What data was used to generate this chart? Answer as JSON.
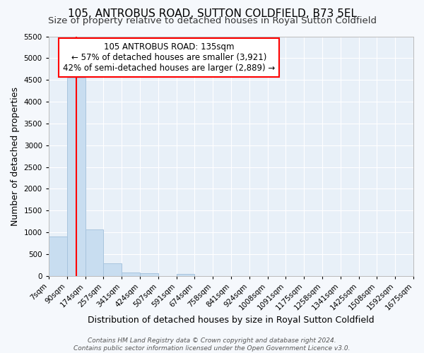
{
  "title": "105, ANTROBUS ROAD, SUTTON COLDFIELD, B73 5EL",
  "subtitle": "Size of property relative to detached houses in Royal Sutton Coldfield",
  "xlabel": "Distribution of detached houses by size in Royal Sutton Coldfield",
  "ylabel": "Number of detached properties",
  "bin_edges": [
    7,
    90,
    174,
    257,
    341,
    424,
    507,
    591,
    674,
    758,
    841,
    924,
    1008,
    1091,
    1175,
    1258,
    1341,
    1425,
    1508,
    1592,
    1675
  ],
  "bin_labels": [
    "7sqm",
    "90sqm",
    "174sqm",
    "257sqm",
    "341sqm",
    "424sqm",
    "507sqm",
    "591sqm",
    "674sqm",
    "758sqm",
    "841sqm",
    "924sqm",
    "1008sqm",
    "1091sqm",
    "1175sqm",
    "1258sqm",
    "1341sqm",
    "1425sqm",
    "1508sqm",
    "1592sqm",
    "1675sqm"
  ],
  "counts": [
    900,
    4560,
    1060,
    290,
    80,
    70,
    0,
    50,
    0,
    0,
    0,
    0,
    0,
    0,
    0,
    0,
    0,
    0,
    0,
    0
  ],
  "bar_color": "#c8ddf0",
  "bar_edgecolor": "#a8c4de",
  "property_size": 135,
  "vline_color": "red",
  "annotation_text": "105 ANTROBUS ROAD: 135sqm\n← 57% of detached houses are smaller (3,921)\n42% of semi-detached houses are larger (2,889) →",
  "annotation_box_edgecolor": "red",
  "annotation_box_facecolor": "white",
  "ylim": [
    0,
    5500
  ],
  "yticks": [
    0,
    500,
    1000,
    1500,
    2000,
    2500,
    3000,
    3500,
    4000,
    4500,
    5000,
    5500
  ],
  "footer1": "Contains HM Land Registry data © Crown copyright and database right 2024.",
  "footer2": "Contains public sector information licensed under the Open Government Licence v3.0.",
  "plot_bg_color": "#e8f0f8",
  "fig_bg_color": "#f5f8fc",
  "grid_color": "white",
  "title_fontsize": 11,
  "subtitle_fontsize": 9.5,
  "axis_label_fontsize": 9,
  "tick_fontsize": 7.5,
  "annotation_fontsize": 8.5,
  "footer_fontsize": 6.5
}
